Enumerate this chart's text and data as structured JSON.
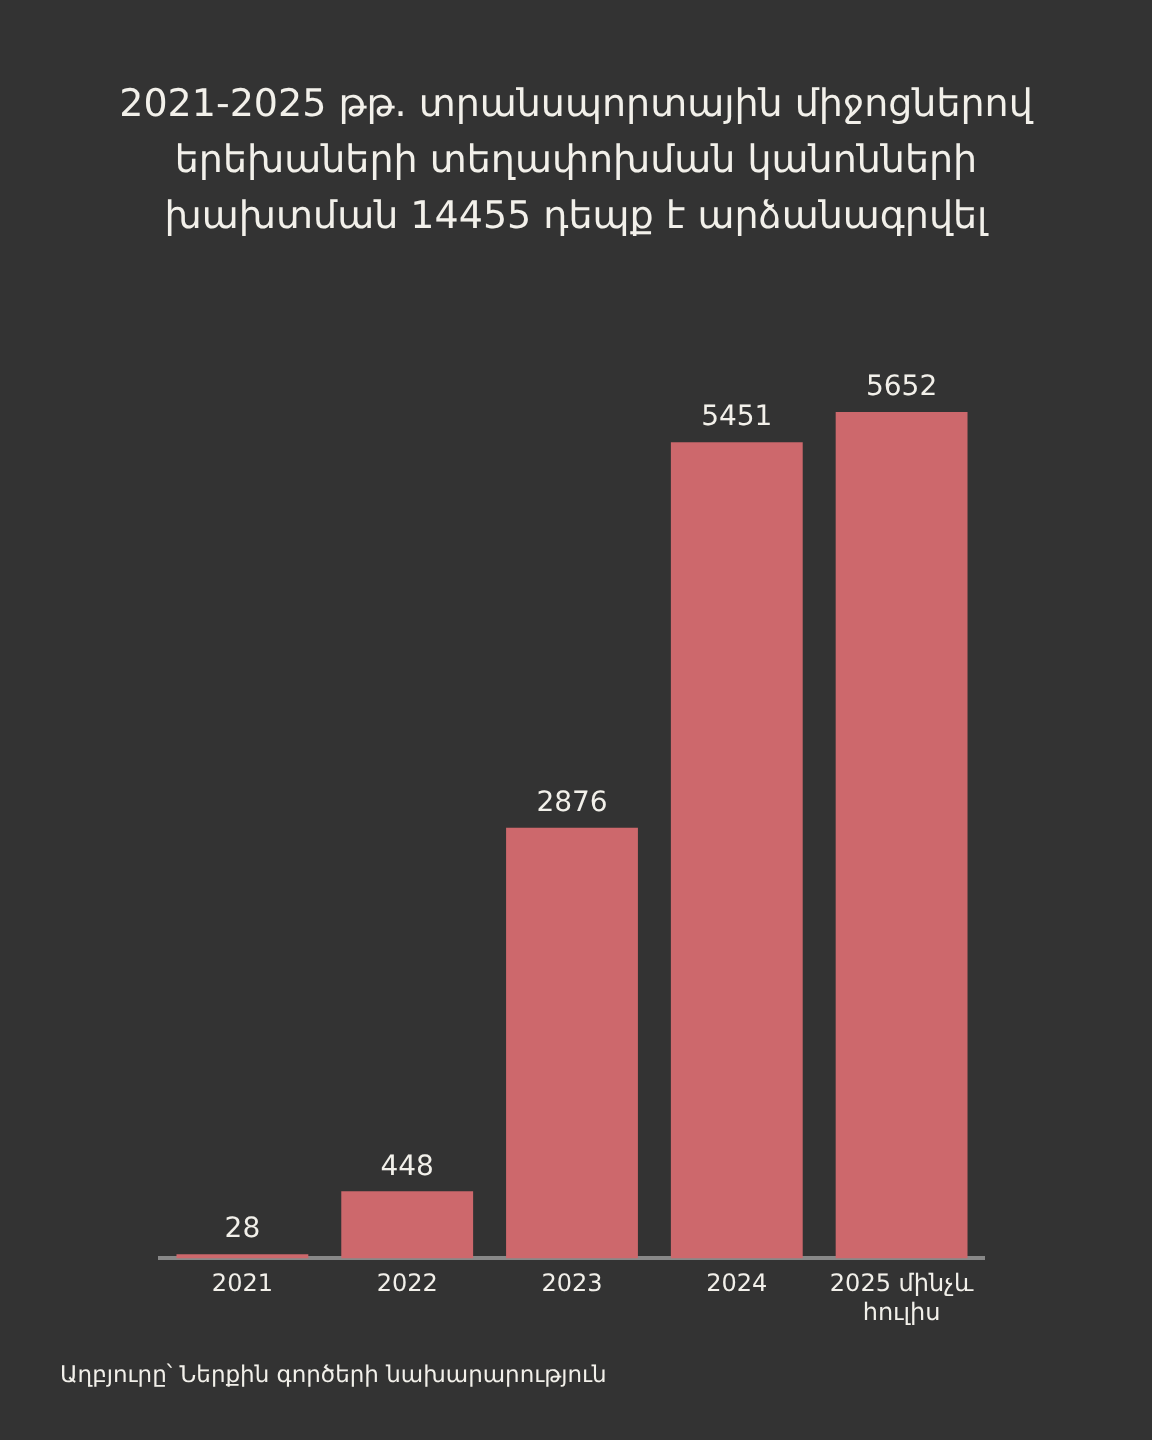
{
  "chart_data": {
    "type": "bar",
    "title": "2021-2025 թթ. տրանսպորտային միջոցներով երեխաների տեղափոխման կանոնների խախտման 14455 դեպք է արձանագրվել",
    "categories": [
      "2021",
      "2022",
      "2023",
      "2024",
      "2025 մինչև հուլիս"
    ],
    "values": [
      28,
      448,
      2876,
      5451,
      5652
    ],
    "color": "#cd686c",
    "data_labels": true,
    "grid": false,
    "legend": false,
    "tick_labels": "x",
    "annotations": [
      "Աղբյուրը՝ Ներքին գործերի նախարարություն"
    ]
  }
}
